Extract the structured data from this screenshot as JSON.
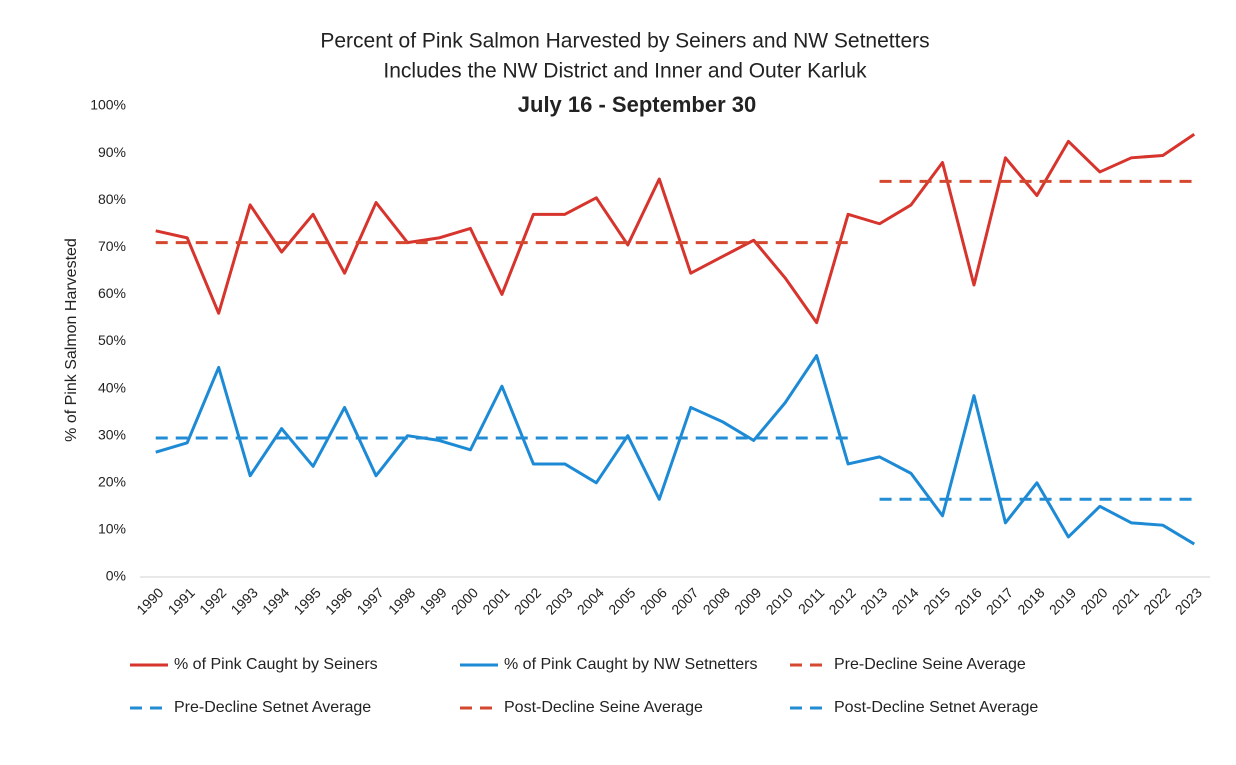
{
  "chart_data": {
    "type": "line",
    "title": "Percent of Pink Salmon Harvested by Seiners and NW Setnetters",
    "subtitle": "Includes the NW District and Inner and Outer Karluk",
    "period": "July 16 - September 30",
    "y_label": "% of Pink Salmon Harvested",
    "categories": [
      "1990",
      "1991",
      "1992",
      "1993",
      "1994",
      "1995",
      "1996",
      "1997",
      "1998",
      "1999",
      "2000",
      "2001",
      "2002",
      "2003",
      "2004",
      "2005",
      "2006",
      "2007",
      "2008",
      "2009",
      "2010",
      "2011",
      "2012",
      "2013",
      "2014",
      "2015",
      "2016",
      "2017",
      "2018",
      "2019",
      "2020",
      "2021",
      "2022",
      "2023"
    ],
    "ylim": [
      0,
      100
    ],
    "yticks": [
      {
        "value": 0,
        "label": "0%"
      },
      {
        "value": 10,
        "label": "10%"
      },
      {
        "value": 20,
        "label": "20%"
      },
      {
        "value": 30,
        "label": "30%"
      },
      {
        "value": 40,
        "label": "40%"
      },
      {
        "value": 50,
        "label": "50%"
      },
      {
        "value": 60,
        "label": "60%"
      },
      {
        "value": 70,
        "label": "70%"
      },
      {
        "value": 80,
        "label": "80%"
      },
      {
        "value": 90,
        "label": "90%"
      },
      {
        "value": 100,
        "label": "100%"
      }
    ],
    "grid": false,
    "series": [
      {
        "name": "% of Pink Caught by Seiners",
        "color": "#d6342c",
        "dashed": false,
        "values": [
          73.5,
          72,
          56,
          79,
          69,
          77,
          64.5,
          79.5,
          71,
          72,
          74,
          60,
          77,
          77,
          80.5,
          70.5,
          84.5,
          64.5,
          68,
          71.5,
          63.5,
          54,
          77,
          75,
          79,
          88,
          62,
          89,
          81,
          92.5,
          86,
          89,
          89.5,
          94
        ]
      },
      {
        "name": "% of Pink Caught by NW Setnetters",
        "color": "#1d8ad6",
        "dashed": false,
        "values": [
          26.5,
          28.5,
          44.5,
          21.5,
          31.5,
          23.5,
          36,
          21.5,
          30,
          29,
          27,
          40.5,
          24,
          24,
          20,
          30,
          16.5,
          36,
          33,
          29,
          37,
          47,
          24,
          25.5,
          22,
          13,
          38.5,
          11.5,
          20,
          8.5,
          15,
          11.5,
          11,
          7
        ]
      },
      {
        "name": "Pre-Decline Seine Average",
        "color": "#d4482f",
        "dashed": true,
        "values": [
          71,
          71,
          71,
          71,
          71,
          71,
          71,
          71,
          71,
          71,
          71,
          71,
          71,
          71,
          71,
          71,
          71,
          71,
          71,
          71,
          71,
          71,
          71,
          null,
          null,
          null,
          null,
          null,
          null,
          null,
          null,
          null,
          null,
          null
        ]
      },
      {
        "name": "Pre-Decline Setnet Average",
        "color": "#238dd4",
        "dashed": true,
        "values": [
          29.5,
          29.5,
          29.5,
          29.5,
          29.5,
          29.5,
          29.5,
          29.5,
          29.5,
          29.5,
          29.5,
          29.5,
          29.5,
          29.5,
          29.5,
          29.5,
          29.5,
          29.5,
          29.5,
          29.5,
          29.5,
          29.5,
          29.5,
          null,
          null,
          null,
          null,
          null,
          null,
          null,
          null,
          null,
          null,
          null
        ]
      },
      {
        "name": "Post-Decline Seine Average",
        "color": "#d4482f",
        "dashed": true,
        "values": [
          null,
          null,
          null,
          null,
          null,
          null,
          null,
          null,
          null,
          null,
          null,
          null,
          null,
          null,
          null,
          null,
          null,
          null,
          null,
          null,
          null,
          null,
          null,
          84,
          84,
          84,
          84,
          84,
          84,
          84,
          84,
          84,
          84,
          84
        ]
      },
      {
        "name": "Post-Decline Setnet Average",
        "color": "#238dd4",
        "dashed": true,
        "values": [
          null,
          null,
          null,
          null,
          null,
          null,
          null,
          null,
          null,
          null,
          null,
          null,
          null,
          null,
          null,
          null,
          null,
          null,
          null,
          null,
          null,
          null,
          null,
          16.5,
          16.5,
          16.5,
          16.5,
          16.5,
          16.5,
          16.5,
          16.5,
          16.5,
          16.5,
          16.5
        ]
      }
    ]
  }
}
